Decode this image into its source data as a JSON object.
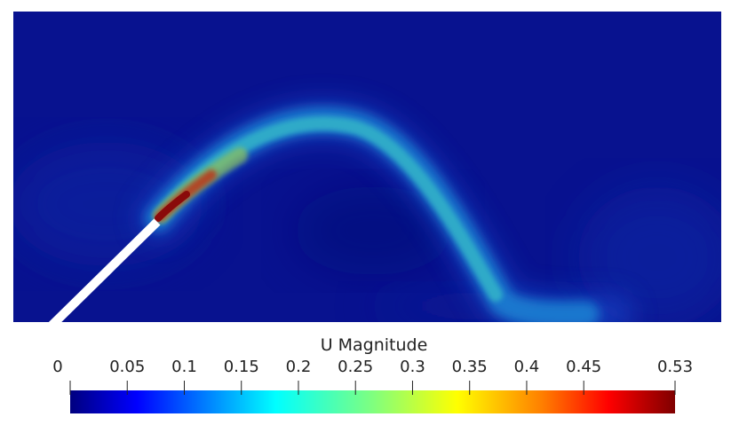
{
  "colorbar": {
    "title": "U Magnitude",
    "range": [
      0,
      0.53
    ],
    "ticks": [
      {
        "value": 0,
        "label": "0"
      },
      {
        "value": 0.05,
        "label": "0.05"
      },
      {
        "value": 0.1,
        "label": "0.1"
      },
      {
        "value": 0.15,
        "label": "0.15"
      },
      {
        "value": 0.2,
        "label": "0.2"
      },
      {
        "value": 0.25,
        "label": "0.25"
      },
      {
        "value": 0.3,
        "label": "0.3"
      },
      {
        "value": 0.35,
        "label": "0.35"
      },
      {
        "value": 0.4,
        "label": "0.4"
      },
      {
        "value": 0.45,
        "label": "0.45"
      },
      {
        "value": 0.53,
        "label": "0.53"
      }
    ],
    "colormap": "jet"
  },
  "colors": {
    "background_field": "#08128f",
    "jet_stops": [
      "#00007f",
      "#0000ff",
      "#007fff",
      "#00ffff",
      "#7fff7f",
      "#ffff00",
      "#ff7f00",
      "#ff0000",
      "#7f0000"
    ]
  }
}
